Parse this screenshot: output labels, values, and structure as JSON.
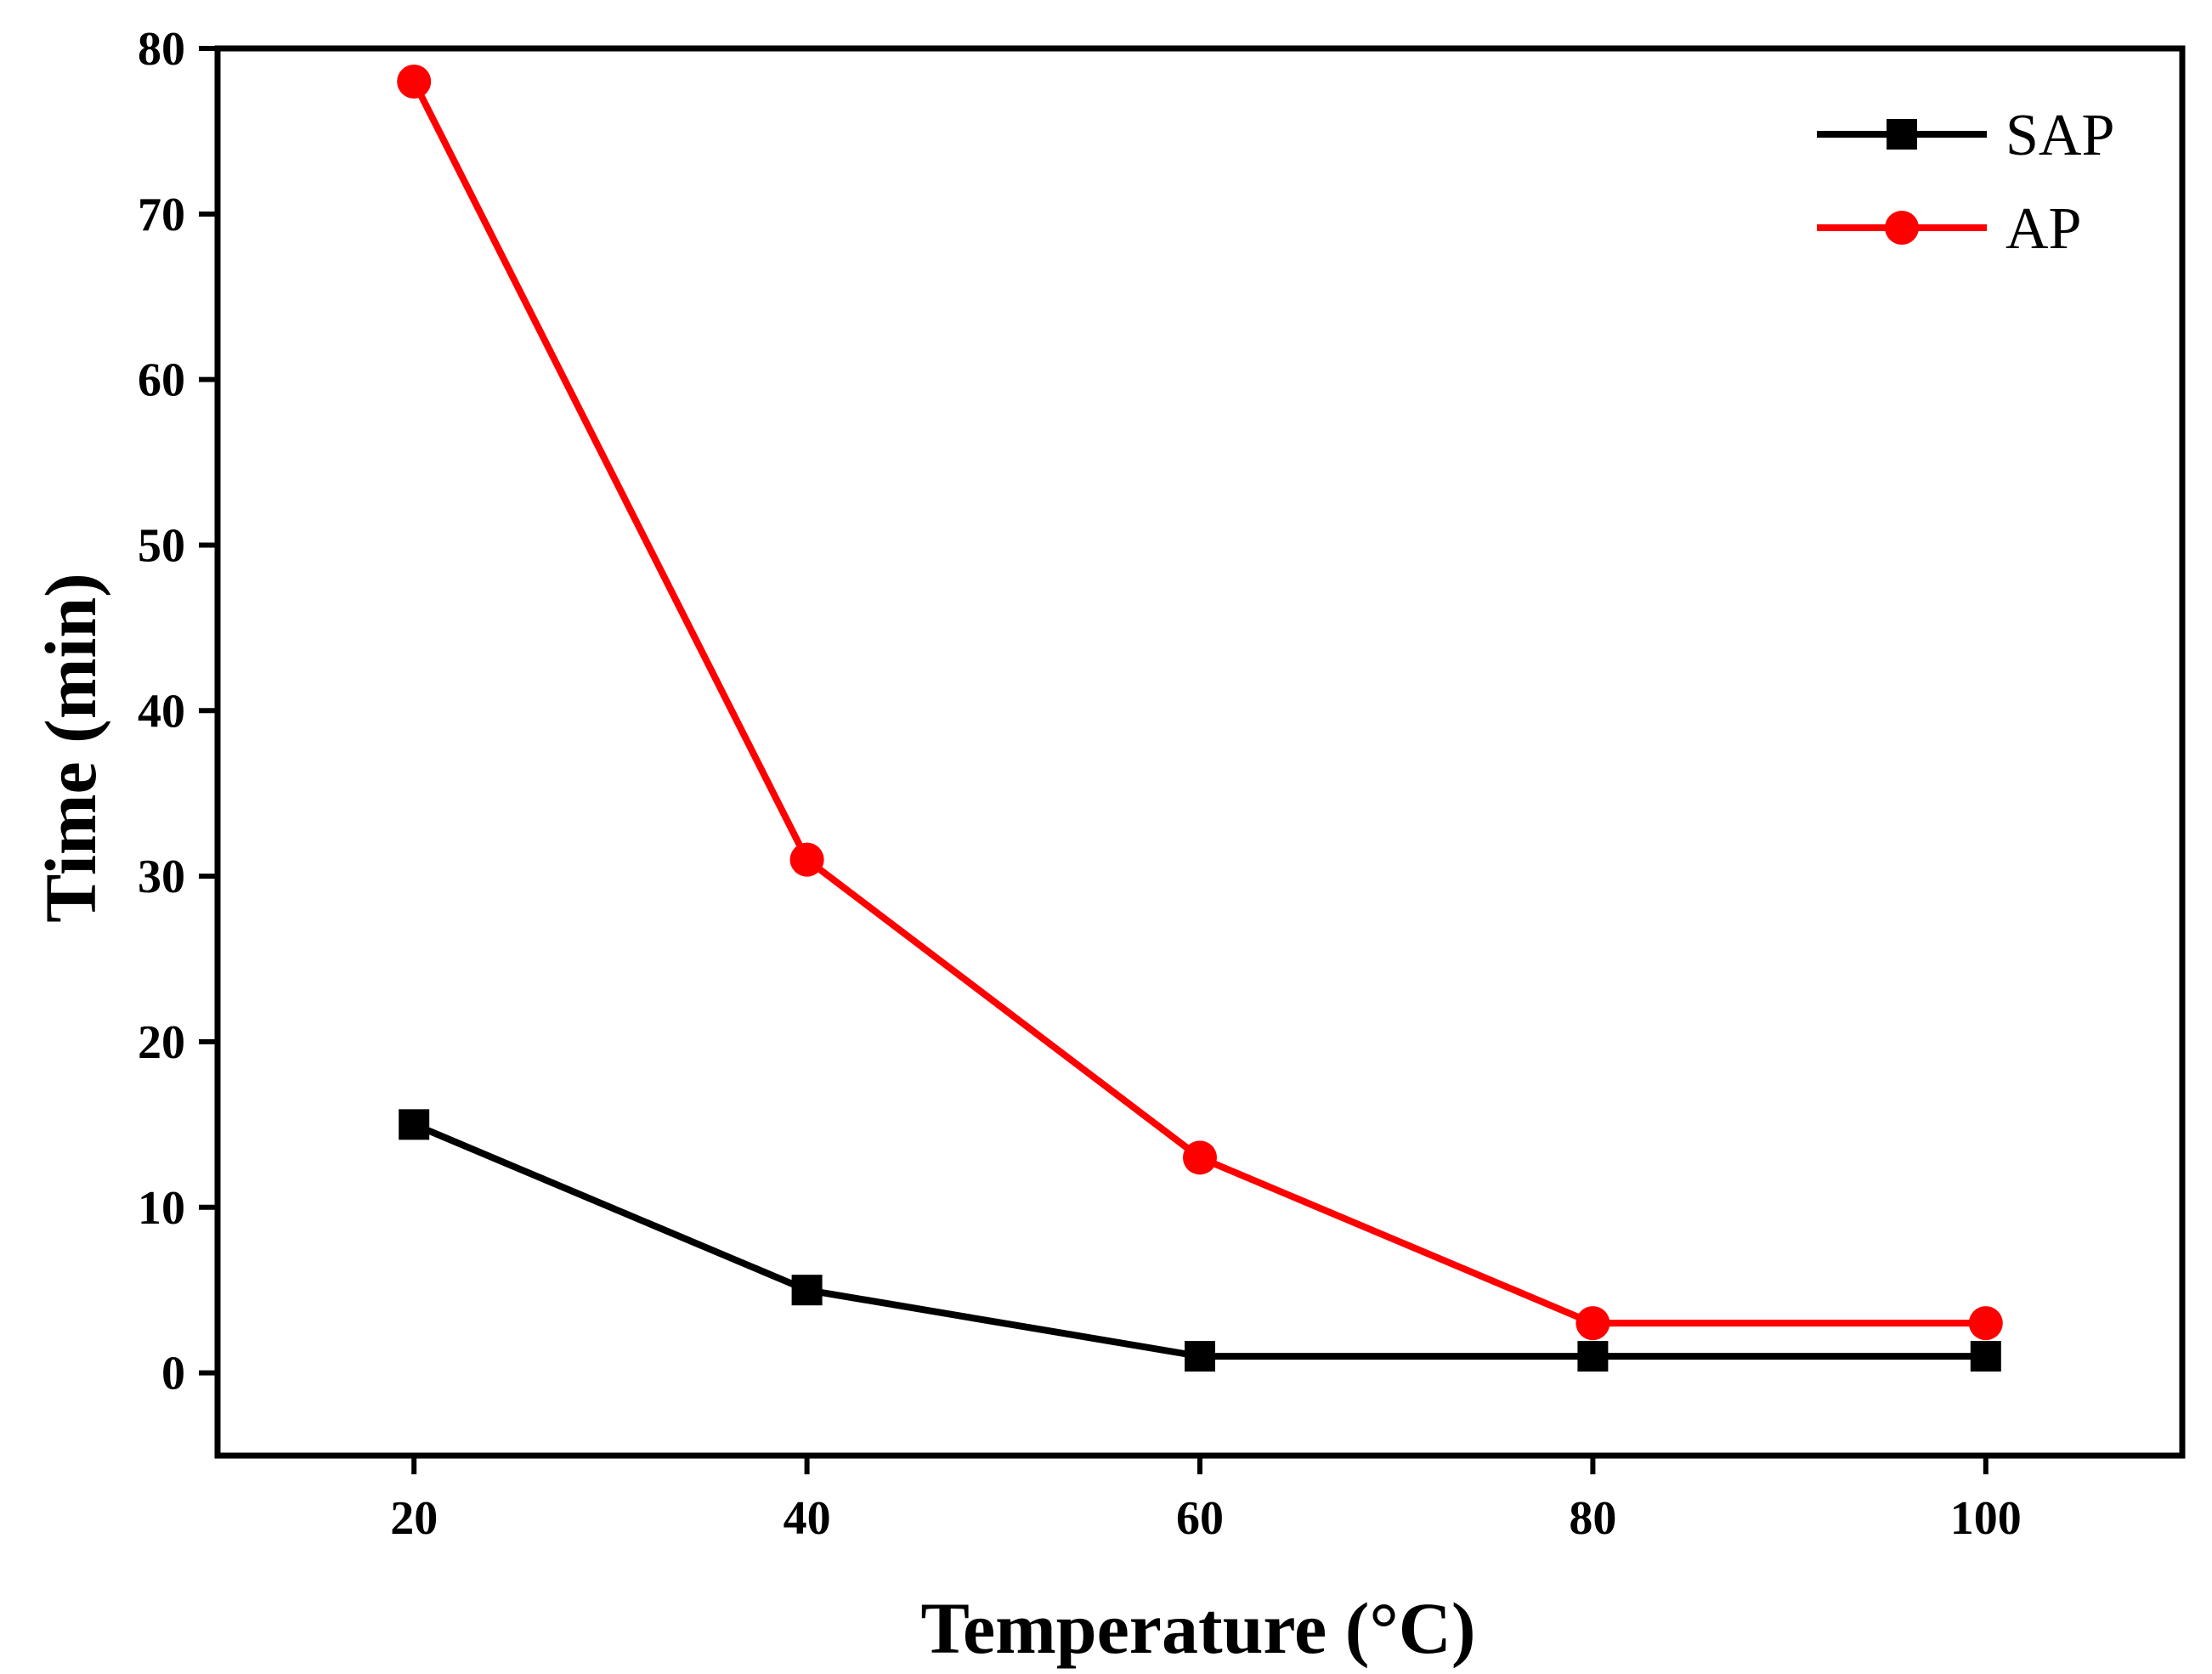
{
  "chart_data": {
    "type": "line",
    "title": "",
    "xlabel": "Temperature (°C)",
    "ylabel": "Time (min)",
    "x": [
      20,
      40,
      60,
      80,
      100
    ],
    "xlim": [
      10,
      110
    ],
    "ylim": [
      -5,
      80
    ],
    "xticks": [
      "20",
      "40",
      "60",
      "80",
      "100"
    ],
    "yticks": [
      "0",
      "10",
      "20",
      "30",
      "40",
      "50",
      "60",
      "70",
      "80"
    ],
    "legend_position": "top-right",
    "grid": false,
    "series": [
      {
        "name": "SAP",
        "marker": "square",
        "color": "#000000",
        "values": [
          15,
          5,
          1,
          1,
          1
        ]
      },
      {
        "name": "AP",
        "marker": "circle",
        "color": "#ff0000",
        "values": [
          78,
          31,
          13,
          3,
          3
        ]
      }
    ]
  }
}
